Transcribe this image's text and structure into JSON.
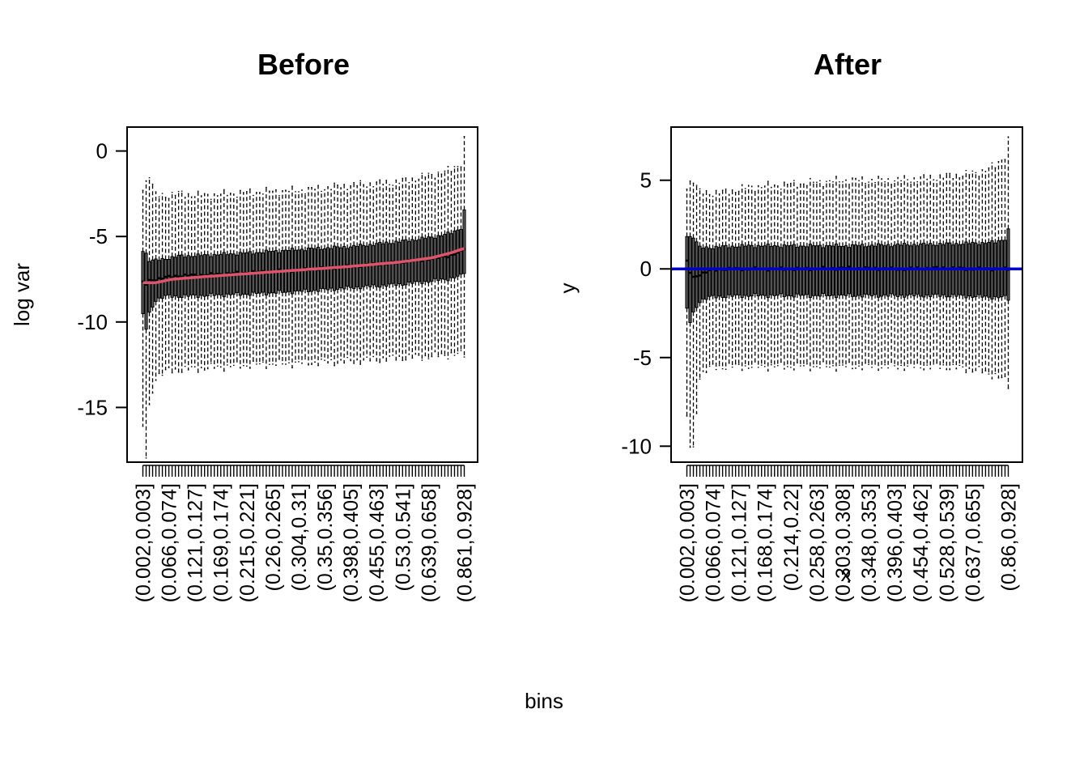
{
  "figure": {
    "shared_xlabel": "bins",
    "colors": {
      "box": "#000000",
      "trend_before": "#DF536B",
      "reference_after": "#0000CD",
      "background": "#FFFFFF"
    }
  },
  "chart_data": [
    {
      "id": "before",
      "type": "boxplot",
      "title": "Before",
      "xlabel": "",
      "ylabel": "log var",
      "ylim": [
        -18.2,
        1.4
      ],
      "yticks": [
        0,
        -5,
        -10,
        -15
      ],
      "grid": false,
      "n_boxes": 100,
      "tick_label_every": 8,
      "categories_shown": [
        "(0.002,0.003]",
        "(0.066,0.074]",
        "(0.121,0.127]",
        "(0.169,0.174]",
        "(0.215,0.221]",
        "(0.26,0.265]",
        "(0.304,0.31]",
        "(0.35,0.356]",
        "(0.398,0.405]",
        "(0.455,0.463]",
        "(0.53,0.541]",
        "(0.639,0.658]",
        "(0.861,0.928]"
      ],
      "summary_anchors": {
        "pos": [
          1,
          2,
          3,
          5,
          8,
          12,
          20,
          35,
          50,
          65,
          80,
          90,
          96,
          99,
          100
        ],
        "median": [
          -7.7,
          -7.8,
          -7.6,
          -7.5,
          -7.4,
          -7.3,
          -7.25,
          -7.1,
          -6.95,
          -6.75,
          -6.5,
          -6.3,
          -6.1,
          -5.9,
          -5.7
        ],
        "q1": [
          -9.6,
          -10.4,
          -9.5,
          -8.7,
          -8.5,
          -8.5,
          -8.45,
          -8.35,
          -8.2,
          -8.0,
          -7.8,
          -7.6,
          -7.45,
          -7.3,
          -7.1
        ],
        "q3": [
          -5.8,
          -6.0,
          -6.4,
          -6.4,
          -6.3,
          -6.15,
          -6.1,
          -5.95,
          -5.75,
          -5.6,
          -5.3,
          -5.05,
          -4.8,
          -4.5,
          -3.5
        ],
        "low": [
          -16.3,
          -17.9,
          -15.0,
          -13.2,
          -12.9,
          -12.8,
          -12.7,
          -12.5,
          -12.4,
          -12.3,
          -12.1,
          -12.0,
          -11.9,
          -11.9,
          -11.9
        ],
        "high": [
          -2.1,
          -1.8,
          -1.4,
          -2.6,
          -2.6,
          -2.5,
          -2.6,
          -2.4,
          -2.3,
          -2.0,
          -1.8,
          -1.4,
          -1.1,
          -0.7,
          0.7
        ]
      },
      "trend_line": {
        "color": "#DF536B",
        "x": [
          1,
          5,
          10,
          20,
          35,
          50,
          65,
          80,
          90,
          96,
          100
        ],
        "y": [
          -7.7,
          -7.7,
          -7.5,
          -7.35,
          -7.15,
          -6.95,
          -6.75,
          -6.5,
          -6.25,
          -5.95,
          -5.7
        ]
      }
    },
    {
      "id": "after",
      "type": "boxplot",
      "title": "After",
      "xlabel": "x",
      "ylabel": "y",
      "ylim": [
        -10.9,
        8.0
      ],
      "yticks": [
        5,
        0,
        -5,
        -10
      ],
      "grid": false,
      "n_boxes": 100,
      "tick_label_every": 8,
      "categories_shown": [
        "(0.002,0.003]",
        "(0.066,0.074]",
        "(0.121,0.127]",
        "(0.168,0.174]",
        "(0.214,0.22]",
        "(0.258,0.263]",
        "(0.303,0.308]",
        "(0.348,0.353]",
        "(0.396,0.403]",
        "(0.454,0.462]",
        "(0.528,0.539]",
        "(0.637,0.655]",
        "(0.86,0.928]"
      ],
      "summary_anchors": {
        "pos": [
          1,
          2,
          3,
          5,
          8,
          12,
          20,
          35,
          50,
          65,
          80,
          90,
          96,
          99,
          100
        ],
        "median": [
          0.4,
          -0.2,
          -0.5,
          -0.3,
          -0.1,
          0.0,
          0.0,
          0.0,
          0.05,
          0.0,
          0.05,
          0.0,
          0.0,
          0.0,
          0.0
        ],
        "q1": [
          -2.3,
          -3.0,
          -2.5,
          -1.8,
          -1.6,
          -1.55,
          -1.5,
          -1.5,
          -1.5,
          -1.5,
          -1.5,
          -1.55,
          -1.6,
          -1.6,
          -1.7
        ],
        "q3": [
          1.9,
          1.8,
          1.8,
          1.2,
          1.2,
          1.25,
          1.3,
          1.3,
          1.3,
          1.35,
          1.4,
          1.45,
          1.5,
          1.7,
          2.2
        ],
        "low": [
          -8.5,
          -10.0,
          -10.2,
          -6.0,
          -5.6,
          -5.5,
          -5.5,
          -5.5,
          -5.5,
          -5.5,
          -5.5,
          -5.7,
          -6.0,
          -6.3,
          -6.6
        ],
        "high": [
          4.7,
          4.9,
          5.0,
          4.3,
          4.3,
          4.3,
          4.6,
          4.8,
          5.0,
          5.0,
          5.2,
          5.4,
          5.8,
          6.4,
          7.3
        ]
      },
      "reference_line": {
        "y": 0,
        "color": "#0000CD"
      }
    }
  ]
}
